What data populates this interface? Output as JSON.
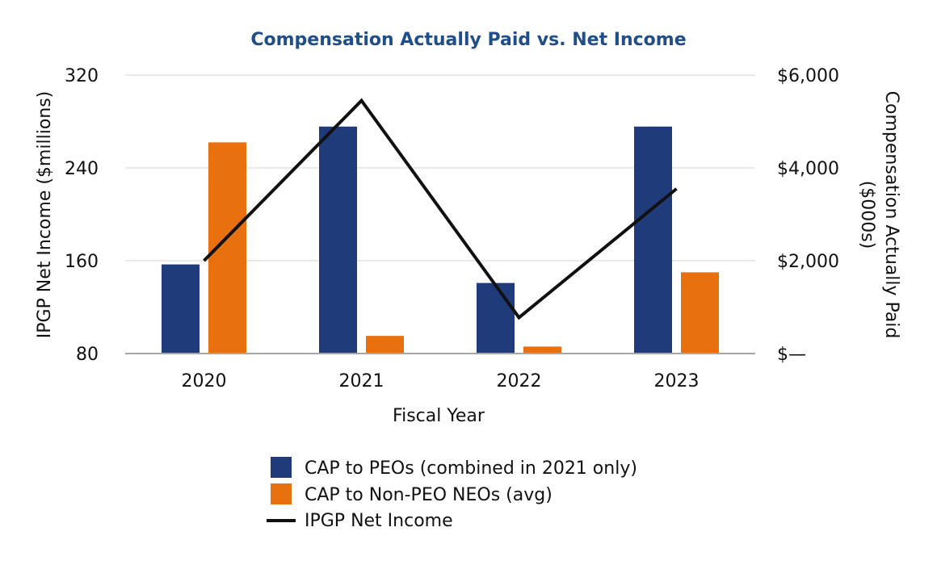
{
  "chart_data": {
    "type": "bar",
    "title": "Compensation Actually Paid vs. Net Income",
    "xlabel": "Fiscal Year",
    "ylabel_left": "IPGP Net Income ($millions)",
    "ylabel_right": [
      "Compensation Actually Paid",
      "($000s)"
    ],
    "categories": [
      "2020",
      "2021",
      "2022",
      "2023"
    ],
    "left_axis": {
      "range": [
        80,
        320
      ],
      "ticks": [
        80,
        160,
        240,
        320
      ],
      "tick_labels": [
        "80",
        "160",
        "240",
        "320"
      ]
    },
    "right_axis": {
      "range": [
        0,
        6000
      ],
      "ticks": [
        0,
        2000,
        4000,
        6000
      ],
      "tick_labels": [
        "$—",
        "$2,000",
        "$4,000",
        "$6,000"
      ]
    },
    "grid": true,
    "series": [
      {
        "name": "CAP to PEOs (combined in 2021 only)",
        "type": "bar",
        "axis": "right",
        "color": "#1f3b7a",
        "values": [
          1920,
          4890,
          1520,
          4890
        ]
      },
      {
        "name": "CAP to Non-PEO NEOs (avg)",
        "type": "bar",
        "axis": "right",
        "color": "#e8700e",
        "values": [
          4550,
          380,
          150,
          1750
        ]
      },
      {
        "name": "IPGP Net Income",
        "type": "line",
        "axis": "left",
        "color": "#111111",
        "values": [
          160,
          298,
          111,
          222
        ]
      }
    ],
    "legend_position": "bottom-center"
  }
}
